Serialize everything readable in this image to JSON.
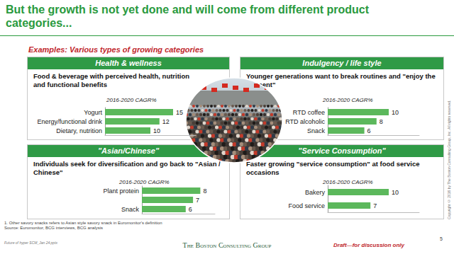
{
  "slide": {
    "title": "But the growth is not yet done and will come from different product categories...",
    "subtitle": "Examples: Various types of growing categories",
    "footnote": "1. Other savory snacks refers to Asian style savory snack in Euromonitor's definition",
    "source": "Source: Euromonitor, BCG interviews, BCG analysis",
    "file": "Future of hyper SCM_Jan 24.pptx",
    "logo": "The Boston Consulting Group",
    "draft": "Draft—for discussion only",
    "page": "5",
    "copyright": "Copyright © 2016 by The Boston Consulting Group, Inc. All rights reserved."
  },
  "chart_data": [
    {
      "type": "bar",
      "orientation": "horizontal",
      "title": "Health & wellness",
      "subtitle": "Food & beverage with perceived health, nutrition and functional benefits",
      "caption": "2016-2020 CAGR%",
      "categories": [
        "Yogurt",
        "Energy/functional drink",
        "Dietary, nutrition"
      ],
      "values": [
        15,
        12,
        10
      ],
      "color": "#5cb85c",
      "xlim": [
        0,
        20
      ],
      "tick_labels": "y",
      "grid": false,
      "data_labels": true
    },
    {
      "type": "bar",
      "orientation": "horizontal",
      "title": "Indulgency / life style",
      "subtitle": "Younger generations want to break routines and \"enjoy the moment\"",
      "caption": "2016-2020 CAGR%",
      "categories": [
        "RTD coffee",
        "RTD alcoholic",
        "Snack"
      ],
      "values": [
        10,
        8,
        6
      ],
      "color": "#5cb85c",
      "xlim": [
        0,
        15
      ],
      "tick_labels": "y",
      "grid": false,
      "data_labels": true
    },
    {
      "type": "bar",
      "orientation": "horizontal",
      "title": "\"Asian/Chinese\"",
      "subtitle": "Individuals seek for diversification and go back to \"Asian / Chinese\"",
      "caption": "2016-2020 CAGR%",
      "categories": [
        "Plant protein",
        null,
        "Snack"
      ],
      "values": [
        8,
        7,
        6
      ],
      "color": "#5cb85c",
      "xlim": [
        0,
        10
      ],
      "tick_labels": "y",
      "grid": false,
      "data_labels": true
    },
    {
      "type": "bar",
      "orientation": "horizontal",
      "title": "\"Service Consumption\"",
      "subtitle": "Faster growing \"service consumption\" at food service occasions",
      "caption": "2016-2020 CAGR%",
      "categories": [
        "Bakery",
        "Food service"
      ],
      "values": [
        10,
        7
      ],
      "color": "#5cb85c",
      "xlim": [
        0,
        15
      ],
      "tick_labels": "y",
      "grid": false,
      "data_labels": true
    }
  ]
}
